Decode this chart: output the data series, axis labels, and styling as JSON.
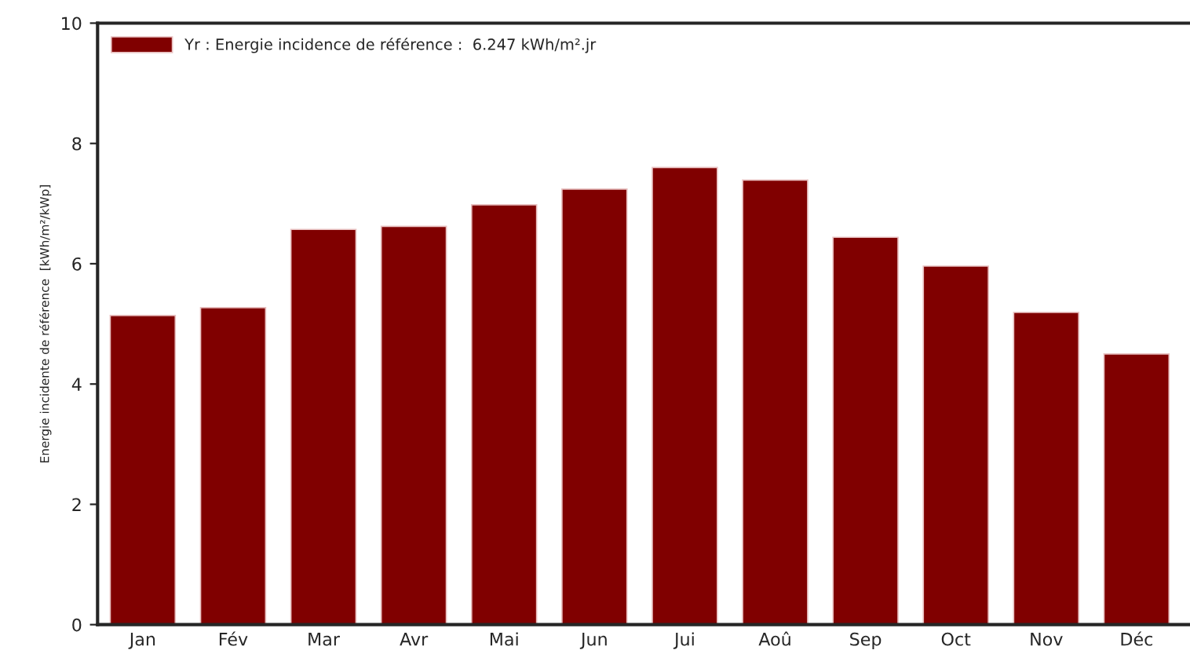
{
  "chart_data": {
    "type": "bar",
    "categories": [
      "Jan",
      "Fév",
      "Mar",
      "Avr",
      "Mai",
      "Jun",
      "Jui",
      "Aoû",
      "Sep",
      "Oct",
      "Nov",
      "Déc"
    ],
    "series": [
      {
        "name": "Yr : Energie incidence de référence :  6.247 kWh/m².jr",
        "color": "#800000",
        "values": [
          5.14,
          5.27,
          6.57,
          6.62,
          6.98,
          7.24,
          7.6,
          7.39,
          6.44,
          5.96,
          5.19,
          4.5
        ]
      }
    ],
    "ylabel": "Energie incidente de référence  [kWh/m²/kWp]",
    "ylim": [
      0,
      10
    ],
    "yticks": [
      0,
      2,
      4,
      6,
      8,
      10
    ],
    "grid": false,
    "legend": "top left"
  }
}
